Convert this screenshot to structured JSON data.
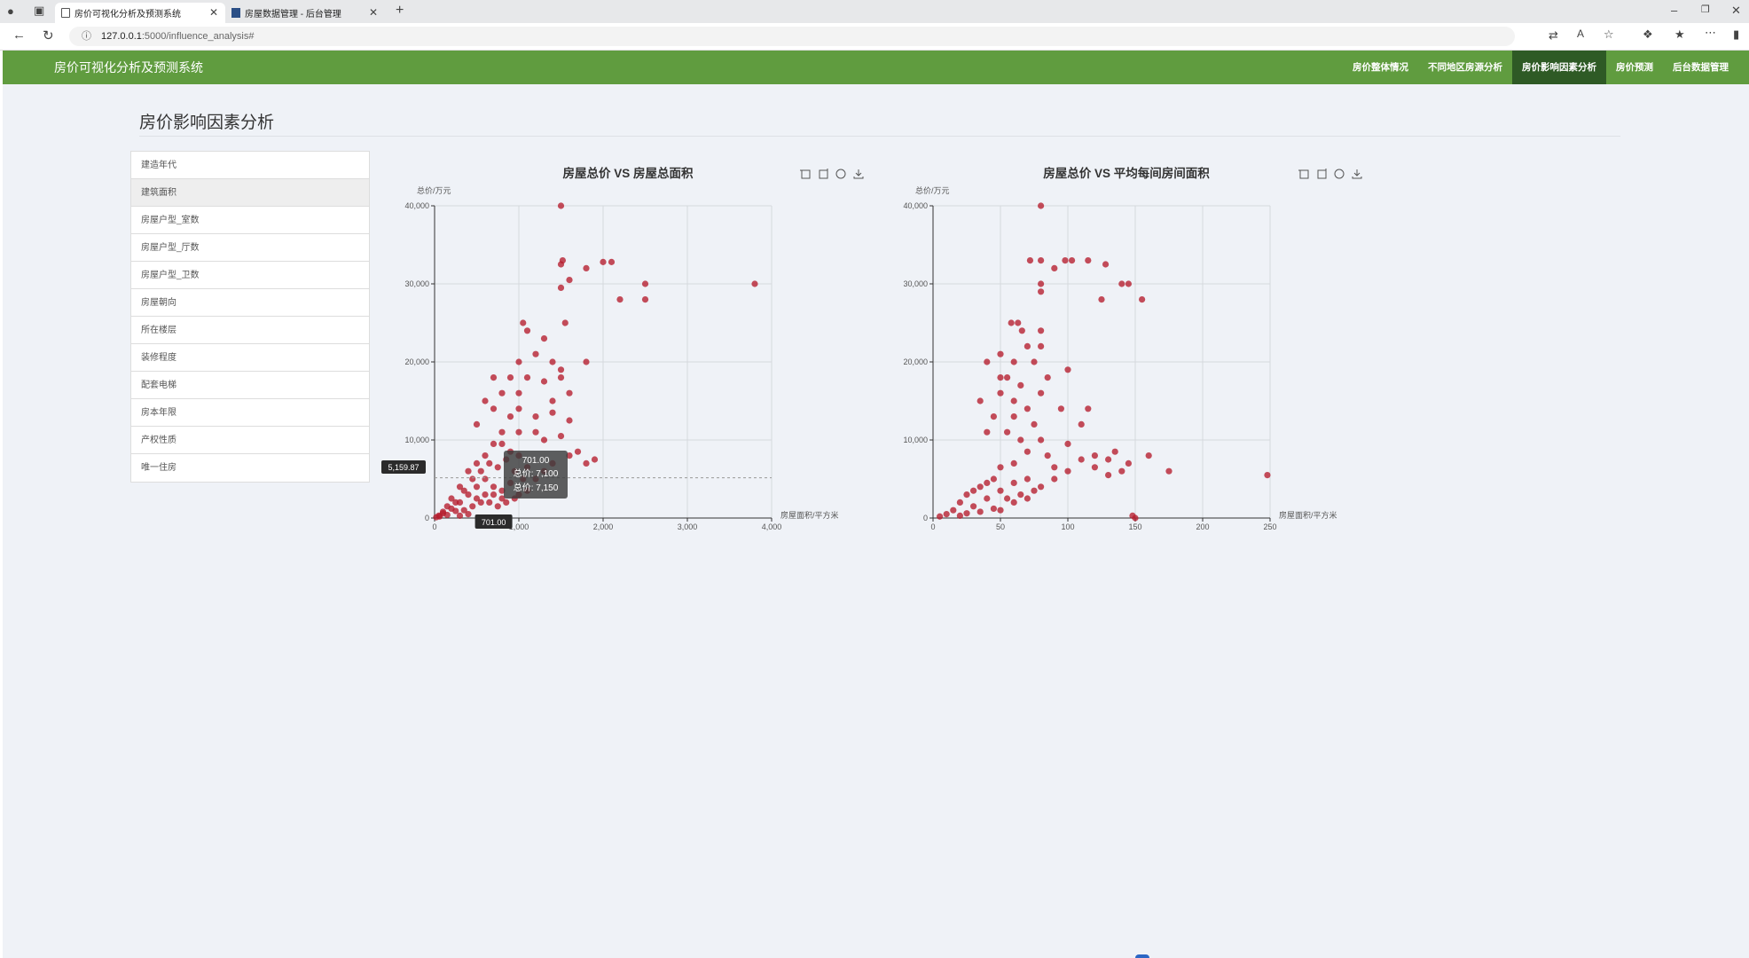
{
  "browser": {
    "tabs": [
      {
        "title": "房价可视化分析及预测系统",
        "active": true
      },
      {
        "title": "房屋数据管理 - 后台管理",
        "active": false
      }
    ],
    "url_host": "127.0.0.1",
    "url_path": ":5000/influence_analysis#"
  },
  "app": {
    "brand": "房价可视化分析及预测系统",
    "nav": [
      {
        "label": "房价整体情况",
        "active": false
      },
      {
        "label": "不同地区房源分析",
        "active": false
      },
      {
        "label": "房价影响因素分析",
        "active": true
      },
      {
        "label": "房价预测",
        "active": false
      },
      {
        "label": "后台数据管理",
        "active": false
      }
    ],
    "accent": "#609c3f",
    "nav_active_color": "#2e5a25",
    "point_color": "#b51c2d"
  },
  "page": {
    "title": "房价影响因素分析",
    "factors": [
      "建造年代",
      "建筑面积",
      "房屋户型_室数",
      "房屋户型_厅数",
      "房屋户型_卫数",
      "房屋朝向",
      "所在楼层",
      "装修程度",
      "配套电梯",
      "房本年限",
      "产权性质",
      "唯一住房"
    ],
    "selected_factor": "建筑面积"
  },
  "chart_data": [
    {
      "type": "scatter",
      "title": "房屋总价 VS 房屋总面积",
      "xlabel": "房屋面积/平方米",
      "ylabel": "总价/万元",
      "xlim": [
        0,
        4000
      ],
      "ylim": [
        0,
        40000
      ],
      "xticks": [
        0,
        1000,
        2000,
        3000,
        4000
      ],
      "yticks": [
        0,
        10000,
        20000,
        30000,
        40000
      ],
      "grid": true,
      "points": [
        [
          1500,
          40000
        ],
        [
          1520,
          33000
        ],
        [
          1500,
          32500
        ],
        [
          1600,
          30500
        ],
        [
          1500,
          29500
        ],
        [
          1800,
          32000
        ],
        [
          2000,
          32800
        ],
        [
          2100,
          32800
        ],
        [
          2200,
          28000
        ],
        [
          2500,
          28000
        ],
        [
          2500,
          30000
        ],
        [
          3800,
          30000
        ],
        [
          1050,
          25000
        ],
        [
          1100,
          24000
        ],
        [
          1300,
          23000
        ],
        [
          1550,
          25000
        ],
        [
          1000,
          20000
        ],
        [
          1200,
          21000
        ],
        [
          1400,
          20000
        ],
        [
          1500,
          19000
        ],
        [
          1800,
          20000
        ],
        [
          700,
          18000
        ],
        [
          900,
          18000
        ],
        [
          1100,
          18000
        ],
        [
          1300,
          17500
        ],
        [
          1500,
          18000
        ],
        [
          600,
          15000
        ],
        [
          800,
          16000
        ],
        [
          1000,
          16000
        ],
        [
          1400,
          15000
        ],
        [
          1600,
          16000
        ],
        [
          700,
          14000
        ],
        [
          900,
          13000
        ],
        [
          1000,
          14000
        ],
        [
          1200,
          13000
        ],
        [
          1400,
          13500
        ],
        [
          1600,
          12500
        ],
        [
          500,
          12000
        ],
        [
          800,
          11000
        ],
        [
          1000,
          11000
        ],
        [
          1200,
          11000
        ],
        [
          1300,
          10000
        ],
        [
          1500,
          10500
        ],
        [
          1600,
          8000
        ],
        [
          1700,
          8500
        ],
        [
          1800,
          7000
        ],
        [
          1900,
          7500
        ],
        [
          1400,
          7000
        ],
        [
          1300,
          6000
        ],
        [
          1200,
          5000
        ],
        [
          1100,
          6500
        ],
        [
          1000,
          8000
        ],
        [
          900,
          8500
        ],
        [
          800,
          9500
        ],
        [
          700,
          9500
        ],
        [
          600,
          8000
        ],
        [
          500,
          7000
        ],
        [
          400,
          6000
        ],
        [
          300,
          4000
        ],
        [
          200,
          2500
        ],
        [
          100,
          800
        ],
        [
          50,
          300
        ],
        [
          20,
          100
        ],
        [
          150,
          1500
        ],
        [
          250,
          2000
        ],
        [
          350,
          3500
        ],
        [
          450,
          5000
        ],
        [
          550,
          6000
        ],
        [
          650,
          7000
        ],
        [
          750,
          6500
        ],
        [
          850,
          7500
        ],
        [
          950,
          6000
        ],
        [
          1050,
          5000
        ],
        [
          500,
          4000
        ],
        [
          600,
          5000
        ],
        [
          700,
          4000
        ],
        [
          800,
          3500
        ],
        [
          900,
          4500
        ],
        [
          400,
          3000
        ],
        [
          300,
          2000
        ],
        [
          200,
          1200
        ],
        [
          100,
          600
        ],
        [
          60,
          200
        ],
        [
          500,
          2500
        ],
        [
          600,
          3000
        ],
        [
          700,
          3000
        ],
        [
          800,
          2500
        ],
        [
          1000,
          3000
        ],
        [
          1100,
          3500
        ],
        [
          350,
          1000
        ],
        [
          450,
          1500
        ],
        [
          550,
          2000
        ],
        [
          650,
          2000
        ],
        [
          750,
          1500
        ],
        [
          850,
          2000
        ],
        [
          950,
          2500
        ],
        [
          400,
          500
        ],
        [
          300,
          300
        ],
        [
          250,
          900
        ],
        [
          150,
          400
        ]
      ],
      "tooltip": {
        "x_label": "701.00",
        "lines": [
          "701.00",
          "总价: 7,100",
          "总价: 7,150"
        ],
        "crosshair_x": "701.00",
        "crosshair_y": "5,159.87"
      }
    },
    {
      "type": "scatter",
      "title": "房屋总价 VS 平均每间房间面积",
      "xlabel": "房屋面积/平方米",
      "ylabel": "总价/万元",
      "xlim": [
        0,
        250
      ],
      "ylim": [
        0,
        40000
      ],
      "xticks": [
        0,
        50,
        100,
        150,
        200,
        250
      ],
      "yticks": [
        0,
        10000,
        20000,
        30000,
        40000
      ],
      "grid": true,
      "points": [
        [
          80,
          40000
        ],
        [
          72,
          33000
        ],
        [
          80,
          33000
        ],
        [
          98,
          33000
        ],
        [
          103,
          33000
        ],
        [
          115,
          33000
        ],
        [
          90,
          32000
        ],
        [
          128,
          32500
        ],
        [
          140,
          30000
        ],
        [
          145,
          30000
        ],
        [
          80,
          30000
        ],
        [
          80,
          29000
        ],
        [
          125,
          28000
        ],
        [
          155,
          28000
        ],
        [
          58,
          25000
        ],
        [
          63,
          25000
        ],
        [
          66,
          24000
        ],
        [
          80,
          24000
        ],
        [
          70,
          22000
        ],
        [
          80,
          22000
        ],
        [
          40,
          20000
        ],
        [
          50,
          21000
        ],
        [
          60,
          20000
        ],
        [
          75,
          20000
        ],
        [
          100,
          19000
        ],
        [
          35,
          15000
        ],
        [
          50,
          18000
        ],
        [
          55,
          18000
        ],
        [
          65,
          17000
        ],
        [
          80,
          16000
        ],
        [
          85,
          18000
        ],
        [
          50,
          16000
        ],
        [
          60,
          15000
        ],
        [
          70,
          14000
        ],
        [
          95,
          14000
        ],
        [
          115,
          14000
        ],
        [
          45,
          13000
        ],
        [
          60,
          13000
        ],
        [
          75,
          12000
        ],
        [
          110,
          12000
        ],
        [
          40,
          11000
        ],
        [
          55,
          11000
        ],
        [
          65,
          10000
        ],
        [
          80,
          10000
        ],
        [
          100,
          9500
        ],
        [
          120,
          8000
        ],
        [
          130,
          7500
        ],
        [
          135,
          8500
        ],
        [
          145,
          7000
        ],
        [
          160,
          8000
        ],
        [
          175,
          6000
        ],
        [
          140,
          6000
        ],
        [
          130,
          5500
        ],
        [
          120,
          6500
        ],
        [
          110,
          7500
        ],
        [
          100,
          6000
        ],
        [
          90,
          6500
        ],
        [
          85,
          8000
        ],
        [
          70,
          8500
        ],
        [
          60,
          7000
        ],
        [
          50,
          6500
        ],
        [
          45,
          5000
        ],
        [
          40,
          4500
        ],
        [
          35,
          4000
        ],
        [
          30,
          3500
        ],
        [
          25,
          3000
        ],
        [
          20,
          2000
        ],
        [
          15,
          1000
        ],
        [
          10,
          500
        ],
        [
          5,
          200
        ],
        [
          30,
          1500
        ],
        [
          40,
          2500
        ],
        [
          50,
          3500
        ],
        [
          60,
          4500
        ],
        [
          70,
          5000
        ],
        [
          80,
          4000
        ],
        [
          90,
          5000
        ],
        [
          55,
          2500
        ],
        [
          65,
          3000
        ],
        [
          75,
          3500
        ],
        [
          35,
          800
        ],
        [
          45,
          1200
        ],
        [
          25,
          600
        ],
        [
          20,
          300
        ],
        [
          50,
          1000
        ],
        [
          60,
          2000
        ],
        [
          70,
          2500
        ],
        [
          248,
          5500
        ],
        [
          148,
          300
        ],
        [
          150,
          0
        ]
      ]
    }
  ]
}
